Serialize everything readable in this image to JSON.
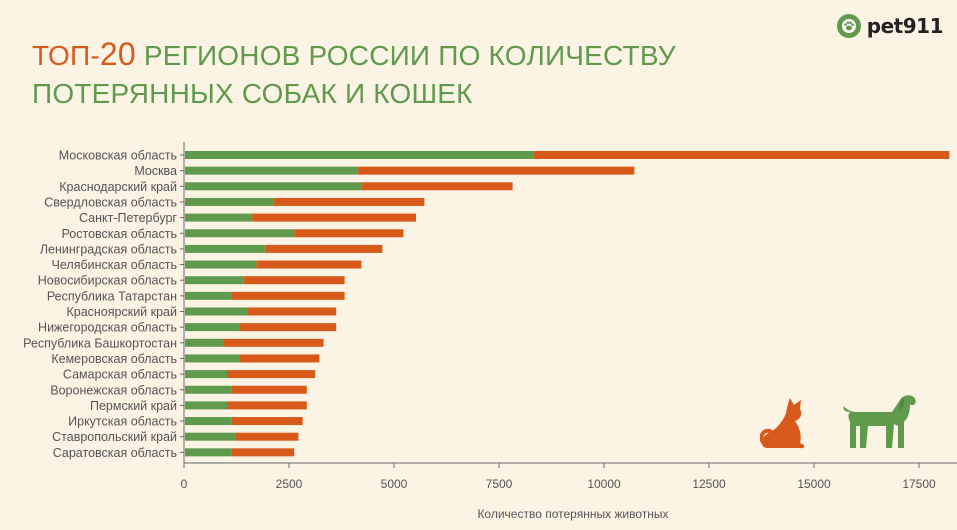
{
  "title": {
    "prefix": "ТОП-",
    "number": "20",
    "rest": " РЕГИОНОВ РОССИИ ПО КОЛИЧЕСТВУ",
    "line2": "ПОТЕРЯННЫХ СОБАК И КОШЕК"
  },
  "logo": {
    "text": "pet911",
    "icon": "paw-icon"
  },
  "colors": {
    "dogs": "#5f9a4d",
    "cats": "#d85a1a",
    "background": "#fbf3e4",
    "axis": "#6b6b6b"
  },
  "icons": {
    "cat": "cat-icon",
    "dog": "dog-icon"
  },
  "chart_data": {
    "type": "bar",
    "orientation": "horizontal",
    "stacked": true,
    "categories": [
      "Московская область",
      "Москва",
      "Краснодарский край",
      "Свердловская область",
      "Санкт-Петербург",
      "Ростовская область",
      "Ленинградская область",
      "Челябинская область",
      "Новосибирская область",
      "Республика Татарстан",
      "Красноярский край",
      "Нижегородская область",
      "Республика Башкортостан",
      "Кемеровская область",
      "Самарская область",
      "Воронежская область",
      "Пермский край",
      "Иркутская область",
      "Ставропольский край",
      "Саратовская область"
    ],
    "series": [
      {
        "color": "#5f9a4d",
        "values": [
          8300,
          4100,
          4200,
          2100,
          1600,
          2600,
          1900,
          1700,
          1400,
          1100,
          1500,
          1300,
          900,
          1300,
          1000,
          1100,
          1000,
          1100,
          1200,
          1100
        ]
      },
      {
        "color": "#d85a1a",
        "values": [
          9900,
          6600,
          3600,
          3600,
          3900,
          2600,
          2800,
          2500,
          2400,
          2700,
          2100,
          2300,
          2400,
          1900,
          2100,
          1800,
          1900,
          1700,
          1500,
          1500
        ]
      }
    ],
    "xlabel": "Количество потерянных животных",
    "xlim": [
      0,
      18500
    ],
    "xticks": [
      "0",
      "2500",
      "5000",
      "7500",
      "10000",
      "12500",
      "15000",
      "17500"
    ],
    "grid": false,
    "legend": "none"
  }
}
